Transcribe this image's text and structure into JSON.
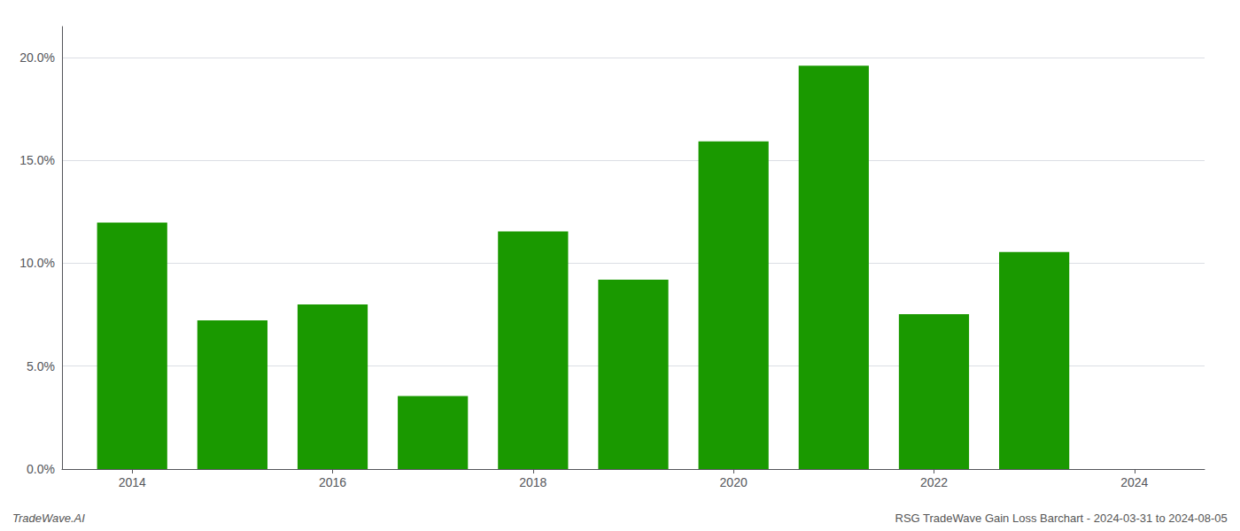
{
  "chart_data": {
    "type": "bar",
    "x": [
      2014,
      2015,
      2016,
      2017,
      2018,
      2019,
      2020,
      2021,
      2022,
      2023
    ],
    "values": [
      0.1198,
      0.0722,
      0.08,
      0.0355,
      0.1155,
      0.092,
      0.1592,
      0.196,
      0.0752,
      0.1055
    ],
    "color": "#1a9900",
    "xlim": [
      2013.3,
      2024.7
    ],
    "xticks": [
      2014,
      2016,
      2018,
      2020,
      2022,
      2024
    ],
    "ylim": [
      0,
      0.215
    ],
    "yticks": [
      {
        "value": 0.0,
        "label": "0.0%"
      },
      {
        "value": 0.05,
        "label": "5.0%"
      },
      {
        "value": 0.1,
        "label": "10.0%"
      },
      {
        "value": 0.15,
        "label": "15.0%"
      },
      {
        "value": 0.2,
        "label": "20.0%"
      }
    ],
    "grid": true,
    "annotations": [
      "TradeWave.AI",
      "RSG TradeWave Gain Loss Barchart - 2024-03-31 to 2024-08-05"
    ]
  }
}
